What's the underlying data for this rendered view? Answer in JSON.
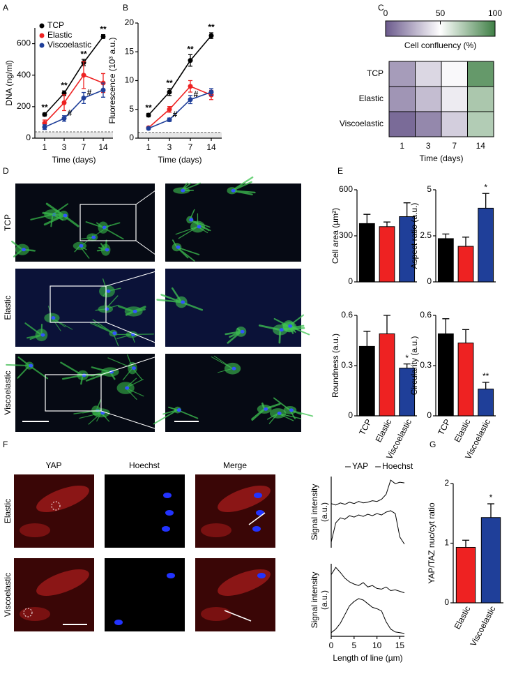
{
  "panel_labels": [
    "A",
    "B",
    "C",
    "D",
    "E",
    "F",
    "G"
  ],
  "images": {
    "D": {
      "rows": [
        "TCP",
        "Elastic",
        "Viscoelastic"
      ],
      "row_colors": [
        "#000000",
        "#ee2222",
        "#1f3f99"
      ]
    },
    "F": {
      "columns": [
        "YAP",
        "Hoechst",
        "Merge"
      ],
      "rows": [
        "Elastic",
        "Viscoelastic"
      ],
      "row_colors": [
        "#ee2222",
        "#1f3f99"
      ]
    }
  },
  "chart_data": [
    {
      "type": "line",
      "ylabel": "DNA (ng/ml)",
      "xlabel": "Time (days)",
      "categories": [
        "1",
        "3",
        "7",
        "14"
      ],
      "ylim": [
        0,
        700
      ],
      "yticks": [
        0,
        200,
        400,
        600
      ],
      "detection_limit": 40,
      "legend": "top-left",
      "series": [
        {
          "name": "TCP",
          "color": "#000000",
          "values": [
            150,
            285,
            480,
            645
          ],
          "errors": [
            10,
            15,
            20,
            12
          ],
          "annotations": [
            "**",
            "**",
            "**",
            "**"
          ]
        },
        {
          "name": "Elastic",
          "color": "#ee2222",
          "values": [
            95,
            225,
            400,
            350
          ],
          "errors": [
            20,
            50,
            85,
            60
          ]
        },
        {
          "name": "Viscoelastic",
          "color": "#1f3f99",
          "values": [
            70,
            125,
            255,
            305
          ],
          "errors": [
            15,
            18,
            35,
            45
          ],
          "annotations": [
            null,
            "#",
            "#",
            null
          ]
        }
      ]
    },
    {
      "type": "line",
      "ylabel": "Fluorescence (10³ a.u.)",
      "xlabel": "Time (days)",
      "categories": [
        "1",
        "3",
        "7",
        "14"
      ],
      "ylim": [
        0,
        20
      ],
      "yticks": [
        0,
        5,
        10,
        15,
        20
      ],
      "detection_limit": 1,
      "series": [
        {
          "color": "#000000",
          "values": [
            4,
            8,
            13.5,
            17.8
          ],
          "errors": [
            0.3,
            0.6,
            1.0,
            0.5
          ],
          "annotations": [
            "**",
            "**",
            "**",
            "**"
          ]
        },
        {
          "color": "#ee2222",
          "values": [
            1.8,
            5,
            9,
            7.5
          ],
          "errors": [
            0.2,
            0.5,
            1.0,
            0.8
          ]
        },
        {
          "color": "#1f3f99",
          "values": [
            1.7,
            3.2,
            6.7,
            8
          ],
          "errors": [
            0.2,
            0.3,
            0.7,
            0.6
          ],
          "annotations": [
            null,
            "#",
            "#",
            null
          ]
        }
      ]
    },
    {
      "type": "heatmap",
      "xlabel": "Time (days)",
      "categories": [
        "1",
        "3",
        "7",
        "14"
      ],
      "rows": [
        "TCP",
        "Elastic",
        "Viscoelastic"
      ],
      "row_colors": [
        "#000000",
        "#ee2222",
        "#1f3f99"
      ],
      "values": [
        [
          20,
          38,
          48,
          90
        ],
        [
          18,
          30,
          44,
          72
        ],
        [
          5,
          14,
          35,
          70
        ]
      ],
      "colorbar": {
        "label": "Cell confluency (%)",
        "lim": [
          0,
          100
        ],
        "ticks": [
          0,
          50,
          100
        ],
        "colors": [
          "#6b5a8c",
          "#ffffff",
          "#3f7f45"
        ]
      }
    },
    {
      "type": "bar",
      "ylabel": "Cell area (µm²)",
      "ylim": [
        0,
        600
      ],
      "yticks": [
        0,
        300,
        600
      ],
      "values": [
        380,
        360,
        425
      ],
      "errors": [
        60,
        30,
        90
      ],
      "colors": [
        "#000000",
        "#ee2222",
        "#1f3f99"
      ]
    },
    {
      "type": "bar",
      "ylabel": "Aspect ratio (a.u.)",
      "ylim": [
        0,
        5
      ],
      "yticks": [
        0,
        2.5,
        5
      ],
      "values": [
        2.35,
        1.93,
        4.0
      ],
      "errors": [
        0.25,
        0.5,
        0.8
      ],
      "colors": [
        "#000000",
        "#ee2222",
        "#1f3f99"
      ],
      "annotations": [
        null,
        null,
        "*"
      ]
    },
    {
      "type": "bar",
      "ylabel": "Roundness (a.u.)",
      "ylim": [
        0,
        0.6
      ],
      "yticks": [
        0,
        0.3,
        0.6
      ],
      "categories": [
        "TCP",
        "Elastic",
        "Viscoelastic"
      ],
      "values": [
        0.415,
        0.49,
        0.285
      ],
      "errors": [
        0.09,
        0.11,
        0.025
      ],
      "colors": [
        "#000000",
        "#ee2222",
        "#1f3f99"
      ],
      "annotations": [
        null,
        null,
        "*"
      ]
    },
    {
      "type": "bar",
      "ylabel": "Circularity (a.u.)",
      "ylim": [
        0,
        0.6
      ],
      "yticks": [
        0,
        0.3,
        0.6
      ],
      "categories": [
        "TCP",
        "Elastic",
        "Viscoelastic"
      ],
      "values": [
        0.49,
        0.435,
        0.16
      ],
      "errors": [
        0.09,
        0.08,
        0.04
      ],
      "colors": [
        "#000000",
        "#ee2222",
        "#1f3f99"
      ],
      "annotations": [
        null,
        null,
        "**"
      ]
    },
    {
      "type": "line",
      "ylabel": [
        "Signal intensity",
        "(a.u.)"
      ],
      "xlim": [
        0,
        16
      ],
      "ylim": [
        0,
        1
      ],
      "x": [
        0,
        1,
        2,
        3,
        4,
        5,
        6,
        7,
        8,
        9,
        10,
        11,
        12,
        13,
        14,
        15,
        16
      ],
      "legend": "top",
      "series": [
        {
          "name": "YAP",
          "color": "#000000",
          "values": [
            0.62,
            0.6,
            0.63,
            0.61,
            0.64,
            0.62,
            0.65,
            0.63,
            0.64,
            0.66,
            0.65,
            0.68,
            0.75,
            0.95,
            0.9,
            0.92,
            0.91
          ]
        },
        {
          "name": "Hoechst",
          "color": "#000000",
          "values": [
            0.08,
            0.35,
            0.42,
            0.4,
            0.45,
            0.43,
            0.46,
            0.44,
            0.47,
            0.45,
            0.48,
            0.46,
            0.5,
            0.52,
            0.48,
            0.15,
            0.05
          ]
        }
      ]
    },
    {
      "type": "line",
      "ylabel": [
        "Signal intensity",
        "(a.u.)"
      ],
      "xlabel": "Length of line (µm)",
      "xlim": [
        0,
        16
      ],
      "xticks": [
        0,
        5,
        10,
        15
      ],
      "ylim": [
        0,
        1
      ],
      "x": [
        0,
        1,
        2,
        3,
        4,
        5,
        6,
        7,
        8,
        9,
        10,
        11,
        12,
        13,
        14,
        15,
        16
      ],
      "series": [
        {
          "color": "#000000",
          "values": [
            0.85,
            0.95,
            0.88,
            0.8,
            0.75,
            0.72,
            0.7,
            0.74,
            0.68,
            0.7,
            0.66,
            0.65,
            0.68,
            0.63,
            0.64,
            0.62,
            0.6
          ]
        },
        {
          "color": "#000000",
          "values": [
            0.05,
            0.1,
            0.18,
            0.3,
            0.42,
            0.48,
            0.52,
            0.5,
            0.45,
            0.4,
            0.38,
            0.35,
            0.2,
            0.1,
            0.06,
            0.05,
            0.04
          ]
        }
      ]
    },
    {
      "type": "bar",
      "ylabel": "YAP/TAZ nuc/cyt ratio",
      "ylim": [
        0,
        2
      ],
      "yticks": [
        0,
        1,
        2
      ],
      "categories": [
        "Elastic",
        "Viscoelastic"
      ],
      "values": [
        0.93,
        1.43
      ],
      "errors": [
        0.12,
        0.23
      ],
      "colors": [
        "#ee2222",
        "#1f3f99"
      ],
      "annotations": [
        null,
        "*"
      ]
    }
  ]
}
